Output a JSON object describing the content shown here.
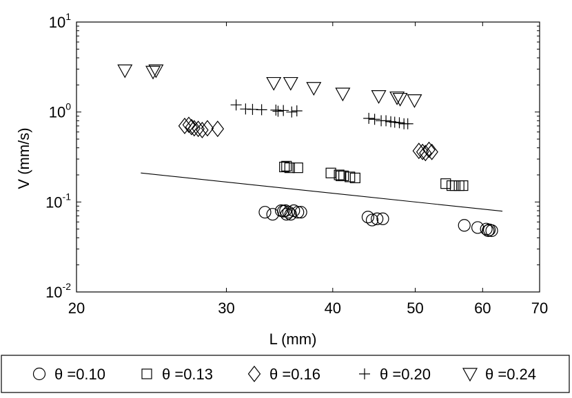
{
  "chart_data": {
    "type": "scatter",
    "x_scale": "log",
    "y_scale": "log",
    "xlim": [
      20,
      70
    ],
    "ylim": [
      0.01,
      10
    ],
    "xlabel": "L (mm)",
    "ylabel": "V (mm/s)",
    "x_ticks": [
      20,
      30,
      40,
      50,
      60,
      70
    ],
    "x_tick_labels": [
      "20",
      "30",
      "40",
      "50",
      "60",
      "70"
    ],
    "y_ticks": [
      {
        "value": 0.01,
        "base": "10",
        "exp": "-2"
      },
      {
        "value": 0.1,
        "base": "10",
        "exp": "-1"
      },
      {
        "value": 1,
        "base": "10",
        "exp": "0"
      },
      {
        "value": 10,
        "base": "10",
        "exp": "1"
      }
    ],
    "grid": false,
    "legend_position": "bottom",
    "series": [
      {
        "name": "θ =0.10",
        "marker": "circle",
        "points": [
          [
            33.3,
            0.077
          ],
          [
            34.0,
            0.073
          ],
          [
            34.8,
            0.08
          ],
          [
            35.2,
            0.08
          ],
          [
            35.3,
            0.073
          ],
          [
            35.5,
            0.077
          ],
          [
            35.7,
            0.073
          ],
          [
            36.0,
            0.08
          ],
          [
            36.4,
            0.077
          ],
          [
            36.7,
            0.077
          ],
          [
            35.0,
            0.079
          ],
          [
            44.0,
            0.068
          ],
          [
            44.5,
            0.063
          ],
          [
            45.1,
            0.065
          ],
          [
            45.8,
            0.065
          ],
          [
            57.1,
            0.055
          ],
          [
            59.2,
            0.052
          ],
          [
            60.6,
            0.05
          ],
          [
            60.9,
            0.048
          ],
          [
            61.1,
            0.049
          ],
          [
            61.5,
            0.048
          ]
        ]
      },
      {
        "name": "θ =0.13",
        "marker": "square",
        "points": [
          [
            35.1,
            0.245
          ],
          [
            35.3,
            0.25
          ],
          [
            35.6,
            0.24
          ],
          [
            36.4,
            0.24
          ],
          [
            39.8,
            0.21
          ],
          [
            40.7,
            0.2
          ],
          [
            40.9,
            0.195
          ],
          [
            41.2,
            0.195
          ],
          [
            41.9,
            0.19
          ],
          [
            42.5,
            0.185
          ],
          [
            54.3,
            0.16
          ],
          [
            55.2,
            0.152
          ],
          [
            55.7,
            0.152
          ],
          [
            56.3,
            0.152
          ],
          [
            56.9,
            0.152
          ]
        ]
      },
      {
        "name": "θ =0.16",
        "marker": "diamond",
        "points": [
          [
            26.8,
            0.7
          ],
          [
            27.1,
            0.72
          ],
          [
            27.3,
            0.68
          ],
          [
            27.5,
            0.66
          ],
          [
            27.8,
            0.65
          ],
          [
            28.1,
            0.63
          ],
          [
            28.5,
            0.66
          ],
          [
            29.3,
            0.65
          ],
          [
            50.5,
            0.37
          ],
          [
            51.0,
            0.36
          ],
          [
            51.4,
            0.35
          ],
          [
            51.9,
            0.38
          ],
          [
            52.3,
            0.36
          ]
        ]
      },
      {
        "name": "θ =0.20",
        "marker": "plus",
        "points": [
          [
            30.8,
            1.2
          ],
          [
            31.6,
            1.08
          ],
          [
            32.2,
            1.07
          ],
          [
            33.0,
            1.06
          ],
          [
            34.3,
            1.05
          ],
          [
            34.5,
            1.02
          ],
          [
            35.0,
            1.04
          ],
          [
            35.8,
            1.0
          ],
          [
            36.3,
            1.03
          ],
          [
            44.1,
            0.85
          ],
          [
            44.8,
            0.83
          ],
          [
            45.6,
            0.8
          ],
          [
            46.2,
            0.8
          ],
          [
            46.8,
            0.78
          ],
          [
            47.3,
            0.77
          ],
          [
            47.9,
            0.76
          ],
          [
            48.5,
            0.74
          ],
          [
            49.0,
            0.74
          ]
        ]
      },
      {
        "name": "θ =0.24",
        "marker": "triangle-down",
        "points": [
          [
            22.8,
            2.9
          ],
          [
            24.6,
            2.8
          ],
          [
            24.8,
            2.9
          ],
          [
            34.1,
            2.1
          ],
          [
            35.7,
            2.1
          ],
          [
            38.0,
            1.85
          ],
          [
            41.1,
            1.6
          ],
          [
            45.3,
            1.5
          ],
          [
            47.6,
            1.45
          ],
          [
            48.0,
            1.4
          ],
          [
            49.9,
            1.35
          ]
        ]
      }
    ],
    "fit_line": {
      "x": [
        23.8,
        63.3
      ],
      "y": [
        0.21,
        0.079
      ]
    }
  }
}
